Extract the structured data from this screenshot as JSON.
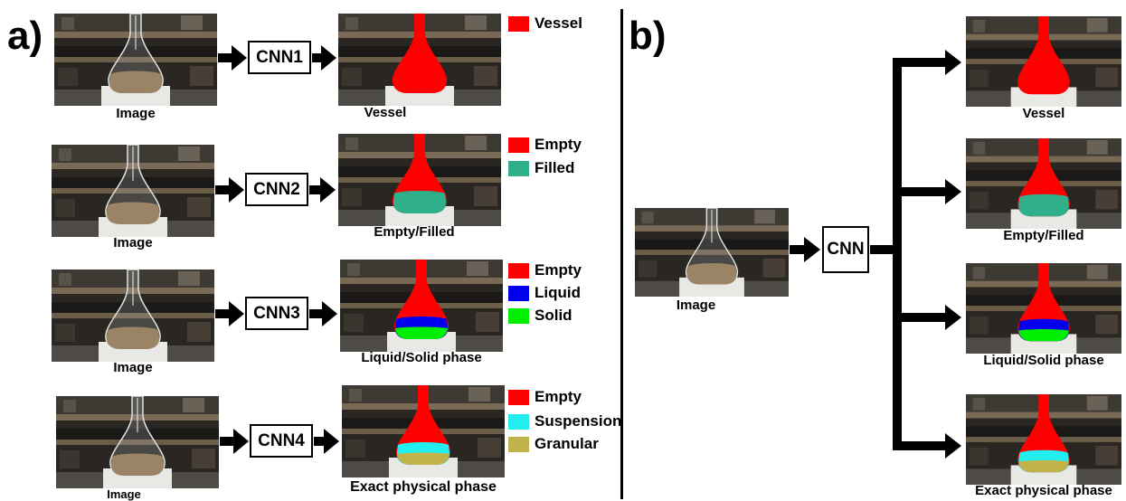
{
  "panel_a": {
    "label": "a)",
    "rows": [
      {
        "input_caption": "Image",
        "model": "CNN1",
        "output_caption": "Vessel",
        "legend": [
          {
            "label": "Vessel",
            "color": "#ff0000"
          }
        ]
      },
      {
        "input_caption": "Image",
        "model": "CNN2",
        "output_caption": "Empty/Filled",
        "legend": [
          {
            "label": "Empty",
            "color": "#ff0000"
          },
          {
            "label": "Filled",
            "color": "#2fb08a"
          }
        ]
      },
      {
        "input_caption": "Image",
        "model": "CNN3",
        "output_caption": "Liquid/Solid phase",
        "legend": [
          {
            "label": "Empty",
            "color": "#ff0000"
          },
          {
            "label": "Liquid",
            "color": "#0000ee"
          },
          {
            "label": "Solid",
            "color": "#00ee00"
          }
        ]
      },
      {
        "input_caption": "Image",
        "model": "CNN4",
        "output_caption": "Exact physical phase",
        "legend": [
          {
            "label": "Empty",
            "color": "#ff0000"
          },
          {
            "label": "Suspension",
            "color": "#22eef0"
          },
          {
            "label": "Granular",
            "color": "#c2b24a"
          }
        ]
      }
    ]
  },
  "panel_b": {
    "label": "b)",
    "input_caption": "Image",
    "model": "CNN",
    "outputs": [
      {
        "caption": "Vessel"
      },
      {
        "caption": "Empty/Filled"
      },
      {
        "caption": "Liquid/Solid phase"
      },
      {
        "caption": "Exact physical phase"
      }
    ]
  },
  "colors": {
    "vessel": "#ff0000",
    "filled": "#2fb08a",
    "liquid": "#0000ee",
    "solid": "#00ee00",
    "suspension": "#22eef0",
    "granular": "#c2b24a"
  }
}
